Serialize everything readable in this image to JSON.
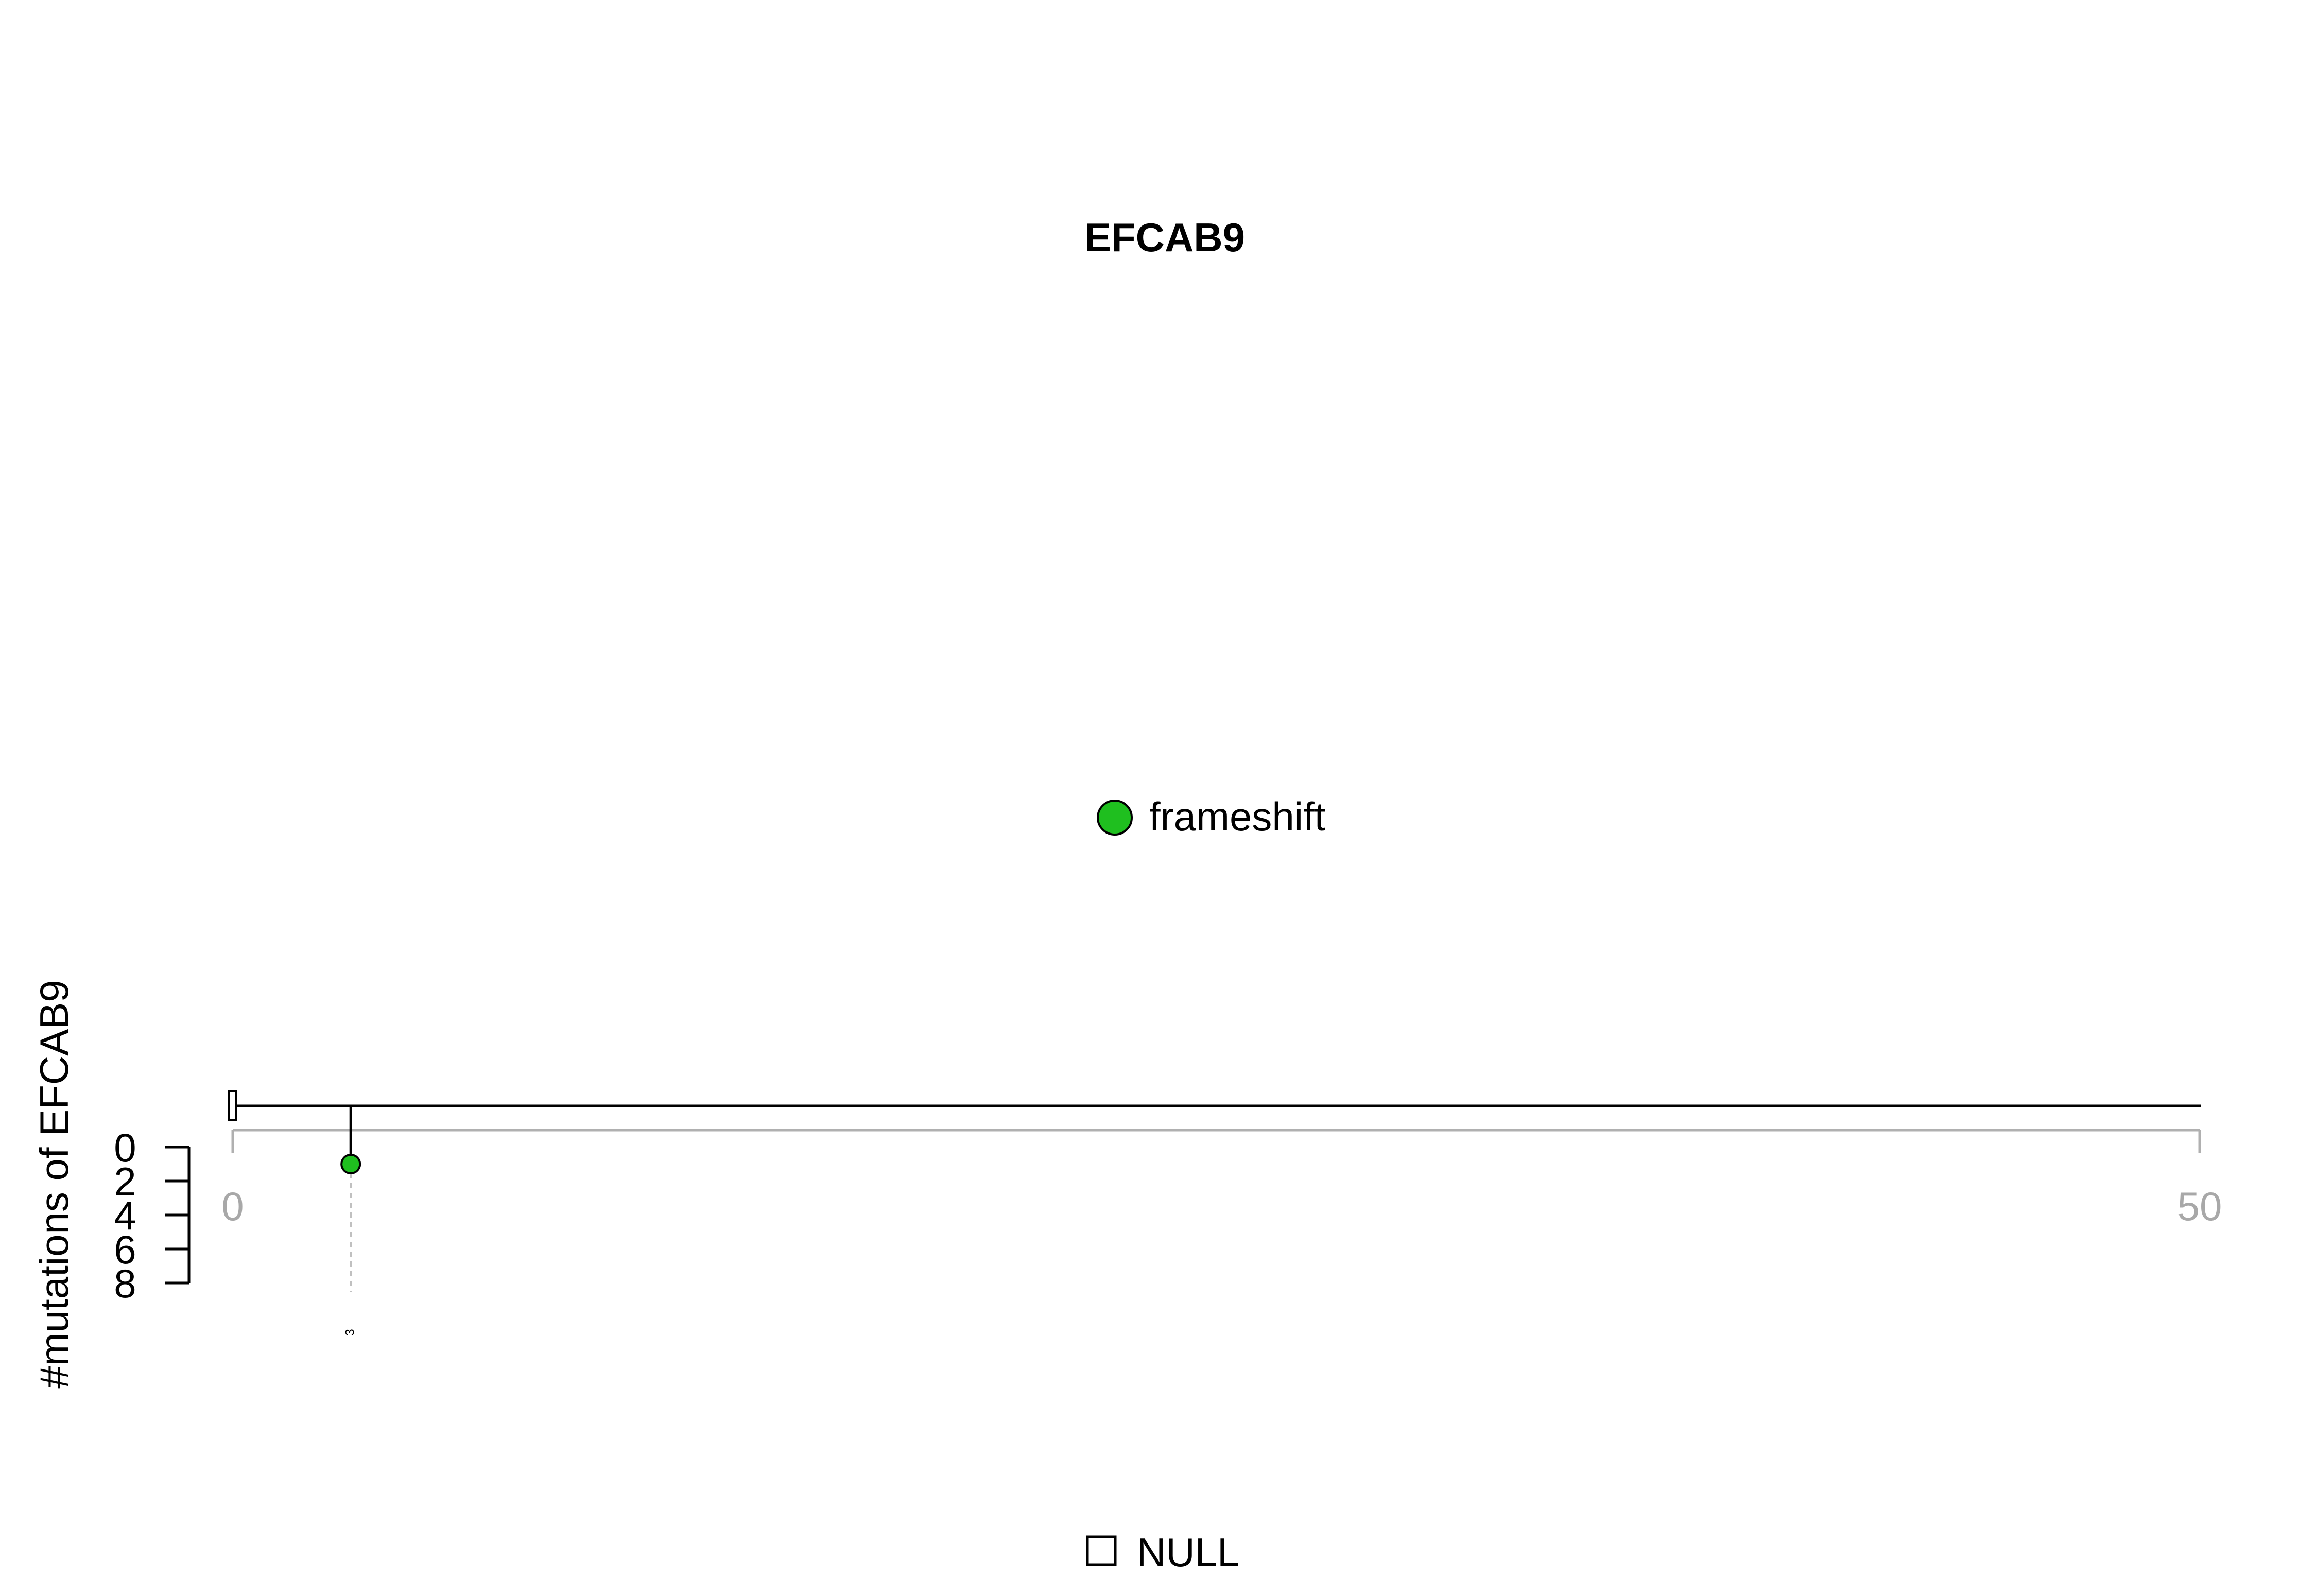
{
  "chart_data": {
    "type": "lollipop",
    "title": "EFCAB9",
    "ylabel": "#mutations of EFCAB9",
    "xlim": [
      0,
      50
    ],
    "x_ticks": [
      0,
      50
    ],
    "ylim": [
      0,
      8
    ],
    "y_ticks": [
      "0",
      "2",
      "4",
      "6",
      "8"
    ],
    "legend_top": [
      {
        "label": "frameshift",
        "color": "#1fbf1f"
      }
    ],
    "legend_bottom": [
      {
        "label": "NULL",
        "color": "#ffffff"
      }
    ],
    "points": [
      {
        "position": 3,
        "count": 1,
        "type": "frameshift",
        "label": "3",
        "color": "#1fbf1f"
      }
    ],
    "domains": [
      {
        "label": "NULL",
        "start": 0,
        "end": 0.2
      }
    ]
  }
}
